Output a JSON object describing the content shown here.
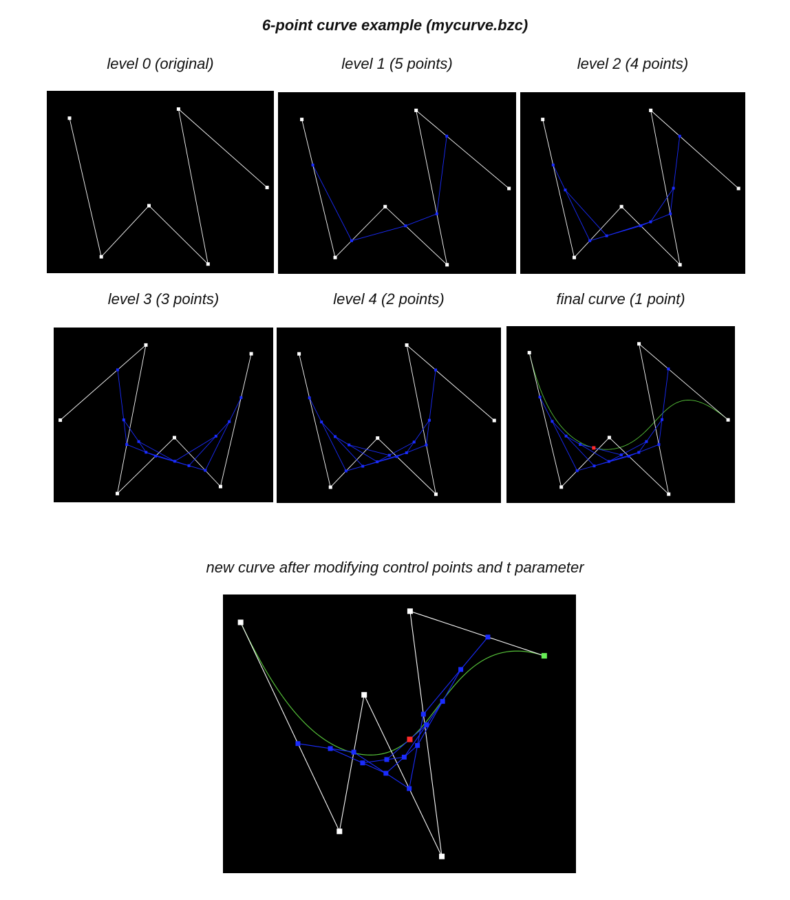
{
  "title": "6-point curve example (mycurve.bzc)",
  "labels": {
    "p0": "level 0 (original)",
    "p1": "level 1 (5 points)",
    "p2": "level 2 (4 points)",
    "p3": "level 3 (3 points)",
    "p4": "level 4 (2 points)",
    "p5": "final curve (1 point)",
    "bottom": "new curve after modifying control points and t parameter"
  },
  "colors": {
    "background": "#000000",
    "control": "#ffffff",
    "intermediate": "#1a2cff",
    "curve": "#57c43a",
    "eval_point": "#ff2a2a",
    "selected": "#66ee55"
  },
  "curves": {
    "top": {
      "t": 0.33,
      "control_points": [
        [
          0.1,
          0.15
        ],
        [
          0.24,
          0.91
        ],
        [
          0.45,
          0.63
        ],
        [
          0.71,
          0.95
        ],
        [
          0.58,
          0.1
        ],
        [
          0.97,
          0.53
        ]
      ]
    },
    "bottom": {
      "t": 0.58,
      "control_points": [
        [
          0.05,
          0.1
        ],
        [
          0.33,
          0.85
        ],
        [
          0.4,
          0.36
        ],
        [
          0.62,
          0.94
        ],
        [
          0.53,
          0.06
        ],
        [
          0.91,
          0.22
        ]
      ]
    }
  }
}
